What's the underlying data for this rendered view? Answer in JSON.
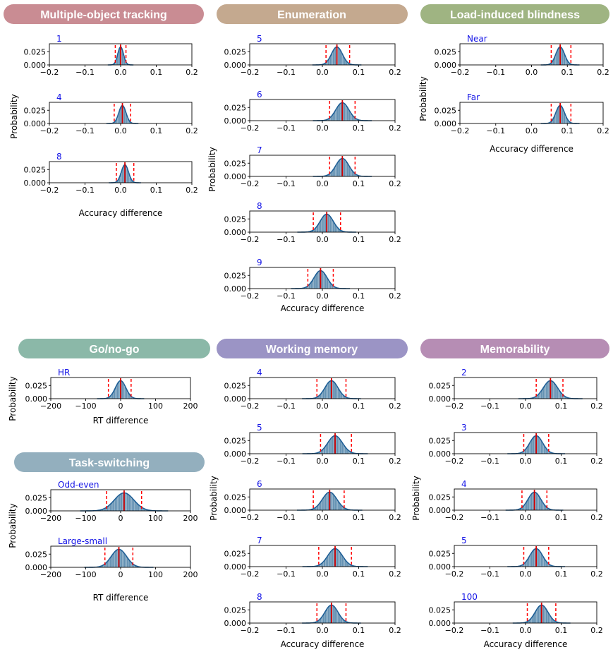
{
  "colors": {
    "mot": "#c98c93",
    "enum": "#c4a98f",
    "lib": "#9fb482",
    "gonogo": "#8bb8a8",
    "taskswitch": "#93afbe",
    "wm": "#9b94c5",
    "mem": "#b68db4",
    "fill": "#4a7fa6",
    "curve": "#1f5f96",
    "mean": "#d60000",
    "ci": "#ff0000",
    "panel_label": "#1414e6"
  },
  "chart_data": [
    {
      "group": "Multiple-object tracking",
      "type": "histogram",
      "xlabel": "Accuracy difference",
      "ylabel": "Probability",
      "xlim": [
        -0.2,
        0.2
      ],
      "xticks": [
        "−0.2",
        "−0.1",
        "0.0",
        "0.1",
        "0.2"
      ],
      "yticks": [
        "0.000",
        "0.025"
      ],
      "panels": [
        {
          "label": "1",
          "mean": 0.0,
          "sd": 0.008,
          "ci": [
            -0.015,
            0.015
          ]
        },
        {
          "label": "4",
          "mean": 0.005,
          "sd": 0.01,
          "ci": [
            -0.018,
            0.028
          ]
        },
        {
          "label": "8",
          "mean": 0.012,
          "sd": 0.01,
          "ci": [
            -0.012,
            0.037
          ]
        }
      ]
    },
    {
      "group": "Enumeration",
      "type": "histogram",
      "xlabel": "Accuracy difference",
      "ylabel": "Probability",
      "xlim": [
        -0.2,
        0.2
      ],
      "xticks": [
        "−0.2",
        "−0.1",
        "0.0",
        "0.1",
        "0.2"
      ],
      "yticks": [
        "0.000",
        "0.025"
      ],
      "panels": [
        {
          "label": "5",
          "mean": 0.04,
          "sd": 0.015,
          "ci": [
            0.01,
            0.075
          ]
        },
        {
          "label": "6",
          "mean": 0.055,
          "sd": 0.018,
          "ci": [
            0.02,
            0.09
          ]
        },
        {
          "label": "7",
          "mean": 0.055,
          "sd": 0.018,
          "ci": [
            0.02,
            0.09
          ]
        },
        {
          "label": "8",
          "mean": 0.012,
          "sd": 0.018,
          "ci": [
            -0.025,
            0.05
          ]
        },
        {
          "label": "9",
          "mean": -0.005,
          "sd": 0.018,
          "ci": [
            -0.04,
            0.03
          ]
        }
      ]
    },
    {
      "group": "Load-induced blindness",
      "type": "histogram",
      "xlabel": "Accuracy difference",
      "ylabel": "Probability",
      "xlim": [
        -0.2,
        0.2
      ],
      "xticks": [
        "−0.2",
        "−0.1",
        "0.0",
        "0.1",
        "0.2"
      ],
      "yticks": [
        "0.000",
        "0.025"
      ],
      "panels": [
        {
          "label": "Near",
          "mean": 0.08,
          "sd": 0.012,
          "ci": [
            0.055,
            0.11
          ]
        },
        {
          "label": "Far",
          "mean": 0.08,
          "sd": 0.012,
          "ci": [
            0.055,
            0.11
          ]
        }
      ]
    },
    {
      "group": "Go/no-go",
      "type": "histogram",
      "xlabel": "RT difference",
      "ylabel": "Probability",
      "xlim": [
        -200,
        200
      ],
      "xticks": [
        "−200",
        "−100",
        "0",
        "100",
        "200"
      ],
      "yticks": [
        "0.000",
        "0.025"
      ],
      "panels": [
        {
          "label": "HR",
          "mean": 0,
          "sd": 15,
          "ci": [
            -35,
            30
          ]
        }
      ]
    },
    {
      "group": "Task-switching",
      "type": "histogram",
      "xlabel": "RT difference",
      "ylabel": "Probability",
      "xlim": [
        -200,
        200
      ],
      "xticks": [
        "−200",
        "−100",
        "0",
        "100",
        "200"
      ],
      "yticks": [
        "0.000",
        "0.025"
      ],
      "panels": [
        {
          "label": "Odd-even",
          "mean": 10,
          "sd": 28,
          "ci": [
            -40,
            60
          ]
        },
        {
          "label": "Large-small",
          "mean": -5,
          "sd": 22,
          "ci": [
            -45,
            35
          ]
        }
      ]
    },
    {
      "group": "Working memory",
      "type": "histogram",
      "xlabel": "Accuracy difference",
      "ylabel": "Probability",
      "xlim": [
        -0.2,
        0.2
      ],
      "xticks": [
        "−0.2",
        "−0.1",
        "0.0",
        "0.1",
        "0.2"
      ],
      "yticks": [
        "0.000",
        "0.025"
      ],
      "panels": [
        {
          "label": "4",
          "mean": 0.025,
          "sd": 0.018,
          "ci": [
            -0.015,
            0.065
          ]
        },
        {
          "label": "5",
          "mean": 0.035,
          "sd": 0.02,
          "ci": [
            -0.005,
            0.08
          ]
        },
        {
          "label": "6",
          "mean": 0.02,
          "sd": 0.02,
          "ci": [
            -0.025,
            0.06
          ]
        },
        {
          "label": "7",
          "mean": 0.035,
          "sd": 0.02,
          "ci": [
            -0.01,
            0.08
          ]
        },
        {
          "label": "8",
          "mean": 0.025,
          "sd": 0.018,
          "ci": [
            -0.015,
            0.065
          ]
        }
      ]
    },
    {
      "group": "Memorability",
      "type": "histogram",
      "xlabel": "Accuracy difference",
      "ylabel": "Probability",
      "xlim": [
        -0.2,
        0.2
      ],
      "xticks": [
        "−0.2",
        "−0.1",
        "0.0",
        "0.1",
        "0.2"
      ],
      "yticks": [
        "0.000",
        "0.025"
      ],
      "panels": [
        {
          "label": "2",
          "mean": 0.07,
          "sd": 0.02,
          "ci": [
            0.03,
            0.105
          ]
        },
        {
          "label": "3",
          "mean": 0.03,
          "sd": 0.018,
          "ci": [
            -0.005,
            0.065
          ]
        },
        {
          "label": "4",
          "mean": 0.025,
          "sd": 0.018,
          "ci": [
            -0.01,
            0.06
          ]
        },
        {
          "label": "5",
          "mean": 0.03,
          "sd": 0.018,
          "ci": [
            -0.005,
            0.065
          ]
        },
        {
          "label": "100",
          "mean": 0.045,
          "sd": 0.018,
          "ci": [
            0.005,
            0.085
          ]
        }
      ]
    }
  ]
}
